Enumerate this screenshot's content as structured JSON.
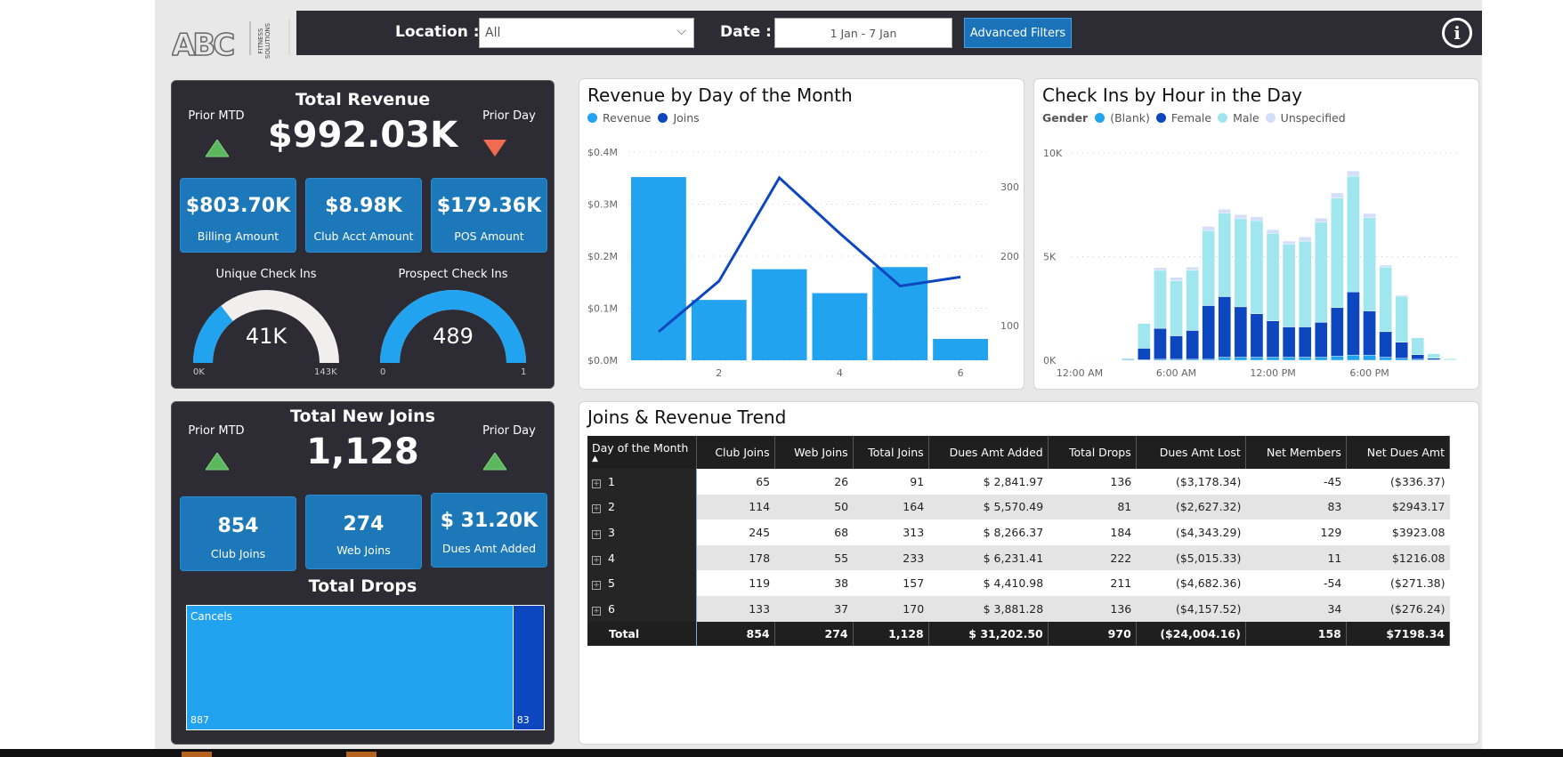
{
  "header": {
    "location_label": "Location :",
    "location_value": "All",
    "date_label": "Date :",
    "date_value": "1 Jan - 7 Jan",
    "advanced_filters": "Advanced Filters",
    "logo_text": "ABC",
    "logo_sub": "FITNESS SOLUTIONS"
  },
  "revenue_card": {
    "title": "Total Revenue",
    "prior_mtd": "Prior MTD",
    "prior_day": "Prior Day",
    "value": "$992.03K",
    "prior_mtd_trend": "up",
    "prior_day_trend": "down",
    "tiles": [
      {
        "value": "$803.70K",
        "label": "Billing Amount"
      },
      {
        "value": "$8.98K",
        "label": "Club Acct Amount"
      },
      {
        "value": "$179.36K",
        "label": "POS Amount"
      }
    ],
    "gauges": [
      {
        "label": "Unique Check Ins",
        "value": "41K",
        "min": "0K",
        "max": "143K",
        "fraction": 0.287
      },
      {
        "label": "Prospect Check Ins",
        "value": "489",
        "min": "0",
        "max": "1",
        "fraction": 1
      }
    ]
  },
  "joins_card": {
    "title": "Total New Joins",
    "prior_mtd": "Prior MTD",
    "prior_day": "Prior Day",
    "value": "1,128",
    "prior_mtd_trend": "up",
    "prior_day_trend": "up",
    "tiles": [
      {
        "value": "854",
        "label": "Club Joins"
      },
      {
        "value": "274",
        "label": "Web Joins"
      },
      {
        "value": "$ 31.20K",
        "label": "Dues Amt Added"
      }
    ],
    "drops_title": "Total Drops",
    "drops": [
      {
        "label": "Cancels",
        "value": 887
      },
      {
        "label": "",
        "value": 83
      }
    ],
    "drops_value_labels": [
      "887",
      "83"
    ]
  },
  "colors": {
    "revenue": "#22a3f0",
    "joins": "#0d47c0",
    "blank": "#22a3f0",
    "female": "#0d47c0",
    "male": "#a0e6ef",
    "unspecified": "#d3defa",
    "dark_panel": "#2d2b33",
    "tile": "#1c78b8",
    "up": "#5cb85c",
    "down": "#f06b50"
  },
  "chart_data": [
    {
      "type": "bar",
      "title": "Revenue by Day of the Month",
      "legend": [
        "Revenue",
        "Joins"
      ],
      "legend_position": "top-left",
      "categories": [
        1,
        2,
        3,
        4,
        5,
        6
      ],
      "x_tick_labels": [
        "2",
        "4",
        "6"
      ],
      "series": [
        {
          "name": "Revenue",
          "type": "bar",
          "axis": "left",
          "values": [
            352000,
            116000,
            175000,
            129000,
            179000,
            41000
          ]
        },
        {
          "name": "Joins",
          "type": "line",
          "axis": "right",
          "values": [
            91,
            164,
            313,
            233,
            157,
            170
          ]
        }
      ],
      "y_left": {
        "ticks": [
          "$0.0M",
          "$0.1M",
          "$0.2M",
          "$0.3M",
          "$0.4M"
        ],
        "range": [
          0,
          400000
        ]
      },
      "y_right": {
        "ticks": [
          "100",
          "200",
          "300"
        ],
        "range": [
          50,
          350
        ]
      },
      "grid": true
    },
    {
      "type": "bar",
      "stacked": true,
      "title": "Check Ins by Hour in the Day",
      "legend_title": "Gender",
      "legend": [
        "(Blank)",
        "Female",
        "Male",
        "Unspecified"
      ],
      "legend_position": "top-left",
      "categories": [
        "0",
        "1",
        "2",
        "3",
        "4",
        "5",
        "6",
        "7",
        "8",
        "9",
        "10",
        "11",
        "12",
        "13",
        "14",
        "15",
        "16",
        "17",
        "18",
        "19",
        "20",
        "21",
        "22",
        "23"
      ],
      "x_tick_labels": [
        "12:00 AM",
        "6:00 AM",
        "12:00 PM",
        "6:00 PM"
      ],
      "series": [
        {
          "name": "(Blank)",
          "values": [
            0,
            0,
            0,
            0,
            0.02,
            0.05,
            0.05,
            0.05,
            0.05,
            0.15,
            0.15,
            0.15,
            0.15,
            0.15,
            0.15,
            0.15,
            0.2,
            0.25,
            0.25,
            0.15,
            0.1,
            0.05,
            0.03,
            0
          ]
        },
        {
          "name": "Female",
          "values": [
            0.01,
            0.01,
            0.01,
            0.03,
            0.56,
            1.49,
            1.13,
            1.39,
            2.59,
            2.92,
            2.43,
            2.09,
            1.75,
            1.46,
            1.46,
            1.68,
            2.34,
            3.05,
            2.13,
            1.23,
            0.77,
            0.22,
            0.07,
            0.01
          ]
        },
        {
          "name": "Male",
          "values": [
            0.01,
            0.01,
            0.01,
            0.06,
            1.2,
            2.8,
            2.65,
            2.9,
            3.62,
            4.02,
            4.25,
            4.5,
            4.23,
            3.99,
            4.14,
            4.83,
            5.28,
            5.58,
            4.5,
            3.11,
            2.22,
            0.82,
            0.22,
            0.06
          ]
        },
        {
          "name": "Unspecified",
          "values": [
            0,
            0,
            0,
            0,
            0.02,
            0.13,
            0.17,
            0.16,
            0.2,
            0.2,
            0.2,
            0.18,
            0.17,
            0.15,
            0.2,
            0.2,
            0.25,
            0.25,
            0.2,
            0.1,
            0.05,
            0.02,
            0.01,
            0
          ]
        }
      ],
      "units": "thousands",
      "y": {
        "ticks": [
          "0K",
          "5K",
          "10K"
        ],
        "range": [
          0,
          10
        ]
      },
      "grid": true
    }
  ],
  "table": {
    "title": "Joins & Revenue Trend",
    "sort_indicator": "▲",
    "columns": [
      "Day of the Month",
      "Club Joins",
      "Web Joins",
      "Total Joins",
      "Dues Amt Added",
      "Total Drops",
      "Dues Amt Lost",
      "Net Members",
      "Net Dues Amt"
    ],
    "rows": [
      [
        "1",
        "65",
        "26",
        "91",
        "$ 2,841.97",
        "136",
        "($3,178.34)",
        "-45",
        "($336.37)"
      ],
      [
        "2",
        "114",
        "50",
        "164",
        "$ 5,570.49",
        "81",
        "($2,627.32)",
        "83",
        "$2943.17"
      ],
      [
        "3",
        "245",
        "68",
        "313",
        "$ 8,266.37",
        "184",
        "($4,343.29)",
        "129",
        "$3923.08"
      ],
      [
        "4",
        "178",
        "55",
        "233",
        "$ 6,231.41",
        "222",
        "($5,015.33)",
        "11",
        "$1216.08"
      ],
      [
        "5",
        "119",
        "38",
        "157",
        "$ 4,410.98",
        "211",
        "($4,682.36)",
        "-54",
        "($271.38)"
      ],
      [
        "6",
        "133",
        "37",
        "170",
        "$ 3,881.28",
        "136",
        "($4,157.52)",
        "34",
        "($276.24)"
      ]
    ],
    "total": [
      "Total",
      "854",
      "274",
      "1,128",
      "$ 31,202.50",
      "970",
      "($24,004.16)",
      "158",
      "$7198.34"
    ]
  }
}
